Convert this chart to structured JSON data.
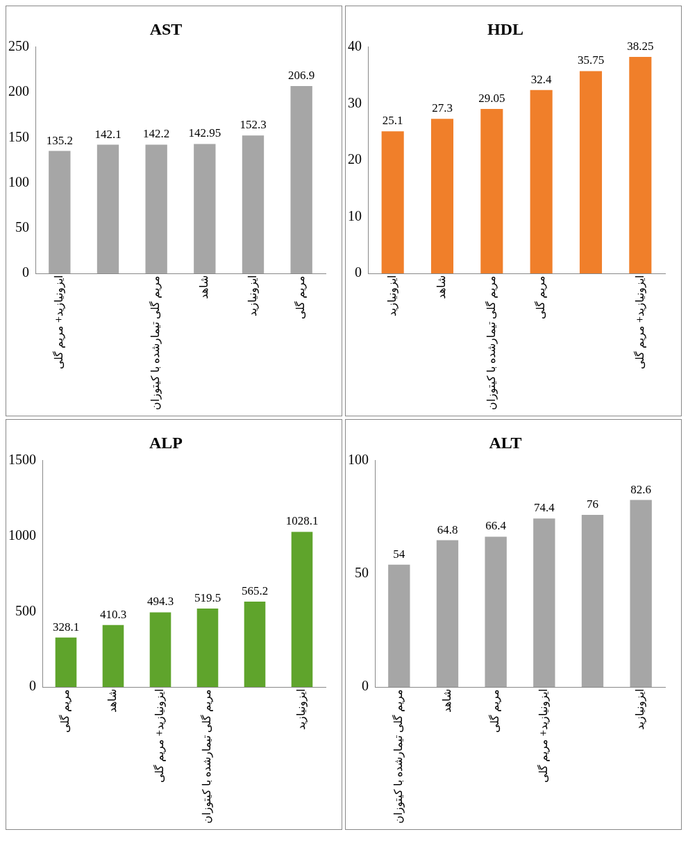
{
  "chart_data": [
    {
      "type": "bar",
      "title": "AST",
      "categories": [
        "ایزونیازید+ مریم گلی",
        null,
        "مریم گلی تیمارشده با کیتوزان",
        "شاهد",
        "ایزونیازید",
        "مریم گلی"
      ],
      "values": [
        135.2,
        142.1,
        142.2,
        142.95,
        152.3,
        206.9
      ],
      "color": "#a6a6a6",
      "ylim": [
        0,
        250
      ],
      "yticks": [
        0,
        50,
        100,
        150,
        200,
        250
      ],
      "data_labels": true
    },
    {
      "type": "bar",
      "title": "HDL",
      "categories": [
        "ایزونیازید",
        "شاهد",
        "مریم گلی تیمارشده با کیتوزان",
        "مریم گلی",
        null,
        "ایزونیازید+ مریم گلی"
      ],
      "values": [
        25.1,
        27.3,
        29.05,
        32.4,
        35.75,
        38.25
      ],
      "color": "#f07f2a",
      "ylim": [
        0,
        40
      ],
      "yticks": [
        0,
        10,
        20,
        30,
        40
      ],
      "data_labels": true
    },
    {
      "type": "bar",
      "title": "ALP",
      "categories": [
        "مریم گلی",
        "شاهد",
        "ایزونیازید+ مریم گلی",
        "مریم گلی تیمارشده با کیتوزان",
        null,
        "ایزونیازید"
      ],
      "values": [
        328.1,
        410.3,
        494.3,
        519.5,
        565.2,
        1028.1
      ],
      "color": "#5fa42c",
      "ylim": [
        0,
        1500
      ],
      "yticks": [
        0,
        500,
        1000,
        1500
      ],
      "data_labels": true
    },
    {
      "type": "bar",
      "title": "ALT",
      "categories": [
        "مریم گلی تیمارشده با کیتوزان",
        "شاهد",
        "مریم گلی",
        "ایزونیازید+ مریم گلی",
        null,
        "ایزونیازید"
      ],
      "values": [
        54,
        64.8,
        66.4,
        74.4,
        76,
        82.6
      ],
      "color": "#a6a6a6",
      "ylim": [
        0,
        100
      ],
      "yticks": [
        0,
        50,
        100
      ],
      "data_labels": true
    }
  ]
}
